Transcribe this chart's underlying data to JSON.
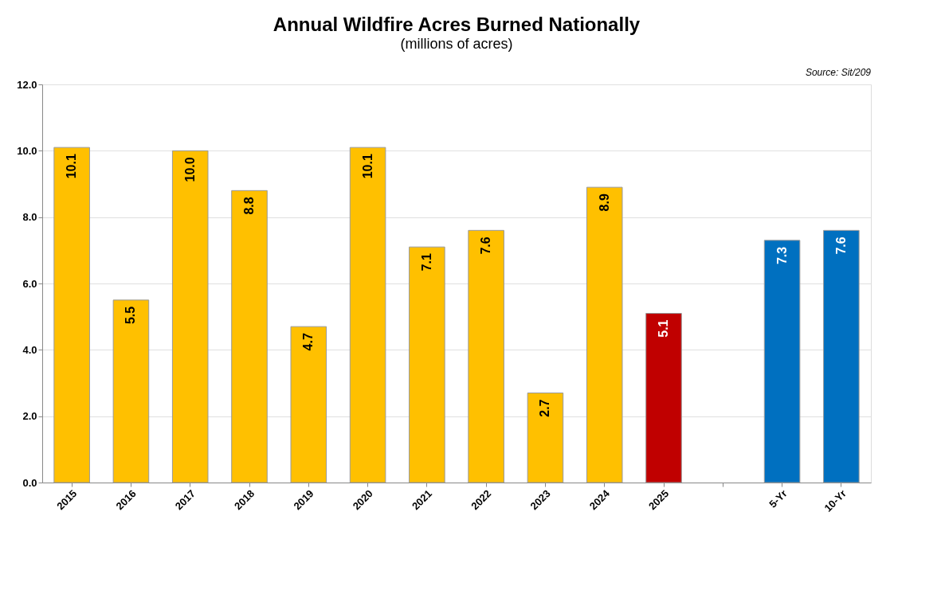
{
  "chart_data": {
    "type": "bar",
    "title": "Annual Wildfire Acres Burned Nationally",
    "subtitle": "(millions of acres)",
    "annotations": [
      "Source: Sit/209"
    ],
    "categories": [
      "2015",
      "2016",
      "2017",
      "2018",
      "2019",
      "2020",
      "2021",
      "2022",
      "2023",
      "2024",
      "2025",
      null,
      "5-Yr",
      "10-Yr"
    ],
    "values": [
      10.1,
      5.5,
      10.0,
      8.8,
      4.7,
      10.1,
      7.1,
      7.6,
      2.7,
      8.9,
      5.1,
      null,
      7.3,
      7.6
    ],
    "colors": [
      "#ffc000",
      "#ffc000",
      "#ffc000",
      "#ffc000",
      "#ffc000",
      "#ffc000",
      "#ffc000",
      "#ffc000",
      "#ffc000",
      "#ffc000",
      "#c00000",
      null,
      "#0070c0",
      "#0070c0"
    ],
    "ylim": [
      0,
      12
    ],
    "yticks": [
      {
        "value": 0,
        "label": "0.0"
      },
      {
        "value": 2,
        "label": "2.0"
      },
      {
        "value": 4,
        "label": "4.0"
      },
      {
        "value": 6,
        "label": "6.0"
      },
      {
        "value": 8,
        "label": "8.0"
      },
      {
        "value": 10,
        "label": "10.0"
      },
      {
        "value": 12,
        "label": "12.0"
      }
    ],
    "value_labels": [
      "10.1",
      "5.5",
      "10.0",
      "8.8",
      "4.7",
      "10.1",
      "7.1",
      "7.6",
      "2.7",
      "8.9",
      "5.1",
      null,
      "7.3",
      "7.6"
    ],
    "grid": "y"
  }
}
